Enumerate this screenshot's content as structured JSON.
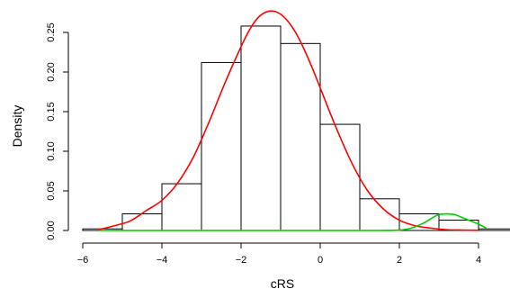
{
  "chart_data": {
    "type": "bar",
    "title": "",
    "xlabel": "cRS",
    "ylabel": "Density",
    "xlim": [
      -6,
      4.8
    ],
    "ylim": [
      0,
      0.27
    ],
    "xticks": [
      -6,
      -4,
      -2,
      0,
      2,
      4
    ],
    "xtick_labels": [
      "−6",
      "−4",
      "−2",
      "0",
      "2",
      "4"
    ],
    "yticks": [
      0,
      0.05,
      0.1,
      0.15,
      0.2,
      0.25
    ],
    "ytick_labels": [
      "0.00",
      "0.05",
      "0.10",
      "0.15",
      "0.20",
      "0.25"
    ],
    "grid": false,
    "legend": "none",
    "histogram": {
      "bins": [
        {
          "x0": -6,
          "x1": -5,
          "density": 0.002
        },
        {
          "x0": -5,
          "x1": -4,
          "density": 0.021
        },
        {
          "x0": -4,
          "x1": -3,
          "density": 0.059
        },
        {
          "x0": -3,
          "x1": -2,
          "density": 0.212
        },
        {
          "x0": -2,
          "x1": -1,
          "density": 0.258
        },
        {
          "x0": -1,
          "x1": 0,
          "density": 0.236
        },
        {
          "x0": 0,
          "x1": 1,
          "density": 0.134
        },
        {
          "x0": 1,
          "x1": 2,
          "density": 0.04
        },
        {
          "x0": 2,
          "x1": 3,
          "density": 0.021
        },
        {
          "x0": 3,
          "x1": 4,
          "density": 0.013
        },
        {
          "x0": 4,
          "x1": 5,
          "density": 0.002
        }
      ],
      "stroke": "#000000",
      "fill": "#ffffff"
    },
    "series": [
      {
        "type": "line",
        "color": "#ff0000",
        "x": [
          -5.6,
          -5.2,
          -4.8,
          -4.4,
          -4.0,
          -3.6,
          -3.2,
          -2.8,
          -2.4,
          -2.0,
          -1.8,
          -1.6,
          -1.4,
          -1.2,
          -1.0,
          -0.8,
          -0.6,
          -0.4,
          -0.2,
          0.0,
          0.4,
          0.8,
          1.2,
          1.6,
          2.0,
          2.4,
          2.8,
          3.2,
          3.6,
          4.0
        ],
        "y": [
          0.001,
          0.006,
          0.012,
          0.025,
          0.038,
          0.06,
          0.093,
          0.138,
          0.187,
          0.232,
          0.252,
          0.267,
          0.275,
          0.277,
          0.273,
          0.263,
          0.248,
          0.228,
          0.205,
          0.18,
          0.13,
          0.085,
          0.05,
          0.027,
          0.013,
          0.006,
          0.003,
          0.001,
          0.0005,
          0.0002
        ]
      },
      {
        "type": "line",
        "color": "#00cc00",
        "x": [
          -5.6,
          -4.0,
          -2.0,
          0.0,
          1.5,
          2.0,
          2.3,
          2.6,
          2.8,
          3.0,
          3.2,
          3.4,
          3.6,
          3.8,
          4.0,
          4.2
        ],
        "y": [
          0.0,
          0.0,
          0.0,
          0.0,
          0.0,
          0.0005,
          0.003,
          0.009,
          0.015,
          0.02,
          0.021,
          0.02,
          0.016,
          0.012,
          0.008,
          0.003
        ]
      }
    ]
  }
}
